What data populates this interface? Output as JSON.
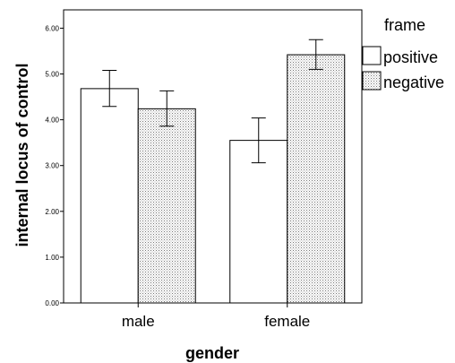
{
  "chart_data": {
    "type": "bar",
    "categories": [
      "male",
      "female"
    ],
    "xlabel": "gender",
    "ylabel": "internal locus of control",
    "ylim": [
      0,
      6.4
    ],
    "y_ticks": [
      "0.00",
      "1.00",
      "2.00",
      "3.00",
      "4.00",
      "5.00",
      "6.00"
    ],
    "legend": {
      "title": "frame",
      "placement": "right"
    },
    "series": [
      {
        "name": "positive",
        "values": [
          4.68,
          3.55
        ],
        "error_low": [
          4.29,
          3.06
        ],
        "error_high": [
          5.08,
          4.04
        ],
        "fill": "#ffffff"
      },
      {
        "name": "negative",
        "values": [
          4.24,
          5.42
        ],
        "error_low": [
          3.86,
          5.1
        ],
        "error_high": [
          4.63,
          5.75
        ],
        "fill": "#dcdcdc"
      }
    ],
    "grid": false
  }
}
